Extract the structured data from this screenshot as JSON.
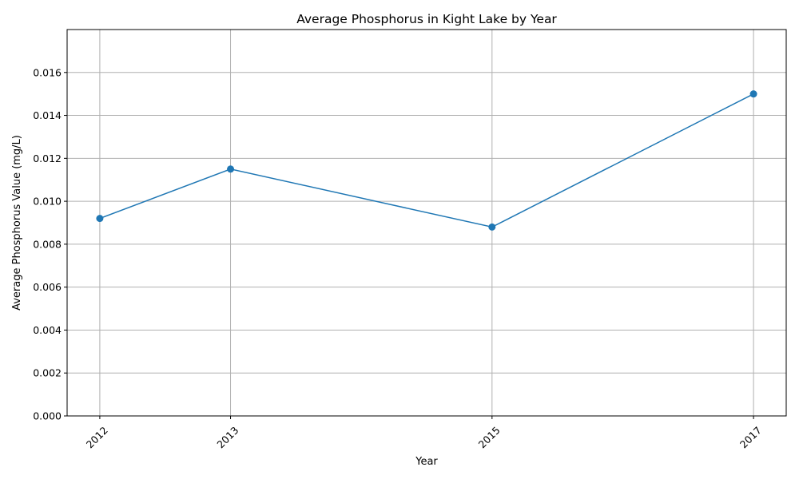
{
  "chart_data": {
    "type": "line",
    "title": "Average Phosphorus in Kight Lake by Year",
    "xlabel": "Year",
    "ylabel": "Average Phosphorus Value (mg/L)",
    "x": [
      2012,
      2013,
      2015,
      2017
    ],
    "x_tick_labels": [
      "2012",
      "2013",
      "2015",
      "2017"
    ],
    "xlim": [
      2011.75,
      2017.25
    ],
    "ylim": [
      0,
      0.018
    ],
    "y_ticks": [
      0,
      0.002,
      0.004,
      0.006,
      0.008,
      0.01,
      0.012,
      0.014,
      0.016
    ],
    "y_tick_labels": [
      "0.000",
      "0.002",
      "0.004",
      "0.006",
      "0.008",
      "0.010",
      "0.012",
      "0.014",
      "0.016"
    ],
    "series": [
      {
        "values": [
          0.0092,
          0.0115,
          0.0088,
          0.015
        ]
      }
    ],
    "grid": true,
    "legend": "none",
    "colors": {
      "series": "#1f77b4",
      "grid": "#b0b0b0",
      "axis": "#000000"
    },
    "markers": "circle"
  }
}
